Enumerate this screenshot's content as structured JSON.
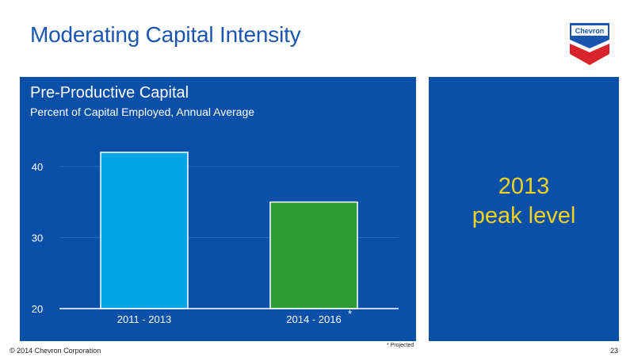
{
  "slide": {
    "title": "Moderating Capital Intensity",
    "logo_text": "Chevron",
    "footer_copyright": "© 2014 Chevron Corporation",
    "footnote": "* Projected",
    "page_number": "23"
  },
  "callout": {
    "line1": "2013",
    "line2": "peak level",
    "color": "#f1d31b"
  },
  "colors": {
    "panel_bg": "#0b50a8",
    "bar1": "#00a4e4",
    "bar2": "#2e9a32",
    "title_blue": "#1a56b0",
    "logo_blue": "#1a56b0",
    "logo_red": "#d9232d"
  },
  "chart_data": {
    "type": "bar",
    "title": "Pre-Productive Capital",
    "subtitle": "Percent of Capital Employed, Annual Average",
    "categories": [
      "2011 - 2013",
      "2014 - 2016"
    ],
    "category_markers": [
      "",
      "*"
    ],
    "values": [
      42,
      35
    ],
    "ylim": [
      20,
      42
    ],
    "yticks": [
      20,
      30,
      40
    ],
    "grid": true
  }
}
